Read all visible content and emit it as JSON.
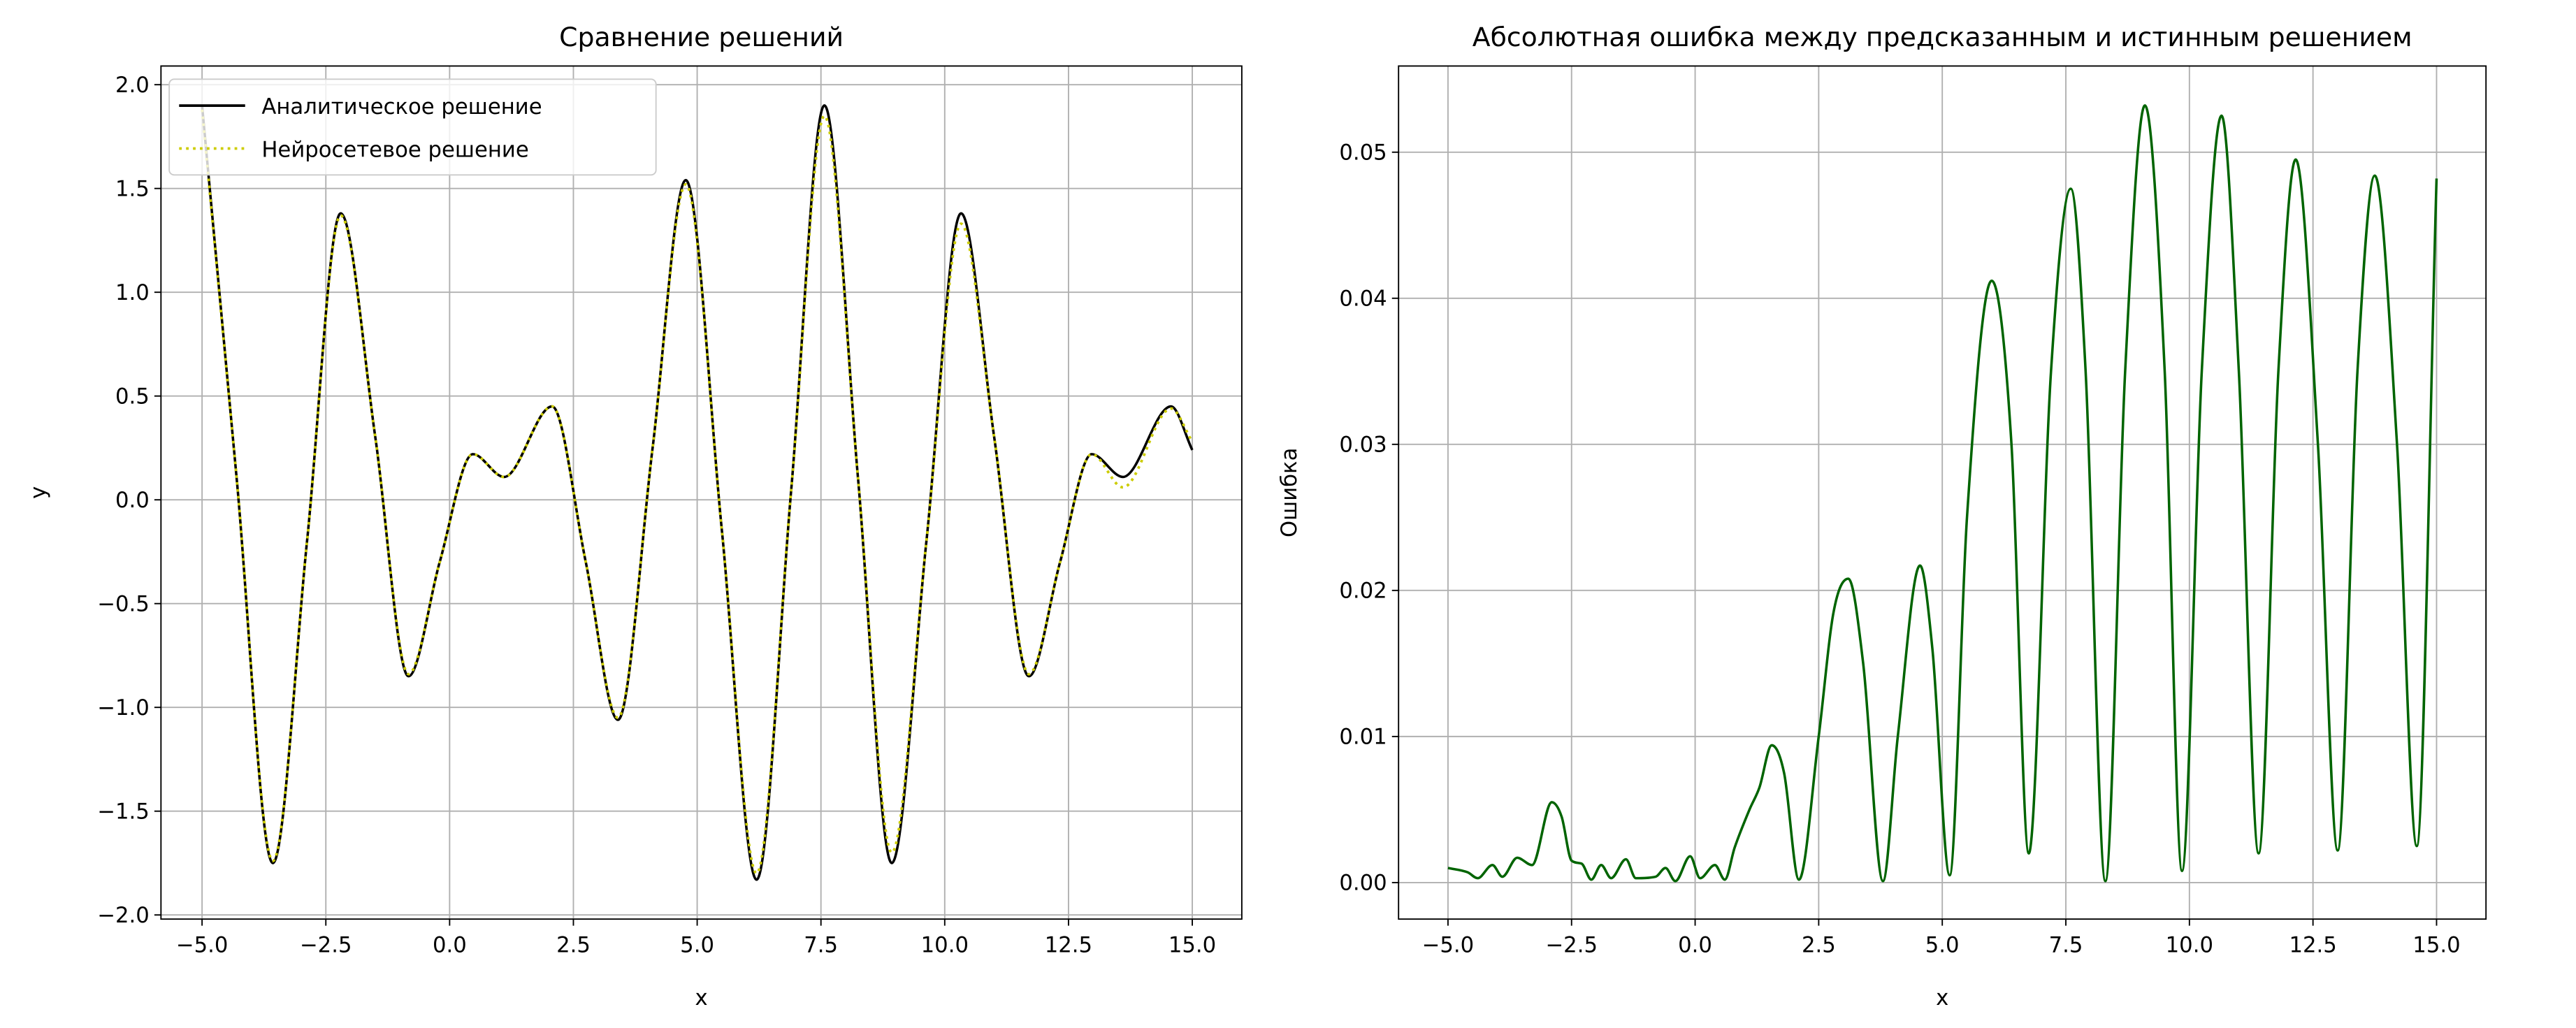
{
  "chart_data": [
    {
      "type": "line",
      "title": "Сравнение решений",
      "xlabel": "x",
      "ylabel": "y",
      "x": [
        -5,
        -4.3,
        -3.57,
        -2.88,
        -2.2,
        -1.5,
        -0.83,
        -0.2,
        0.47,
        1.1,
        2.07,
        2.75,
        3.4,
        4.1,
        4.77,
        5.5,
        6.2,
        6.9,
        7.57,
        8.25,
        8.93,
        9.63,
        10.33,
        11.0,
        11.7,
        12.33,
        12.97,
        13.6,
        14.57,
        15
      ],
      "series": [
        {
          "name": "Аналитическое решение",
          "color": "#000000",
          "linestyle": "solid",
          "values": [
            1.9,
            0.1,
            -1.75,
            -0.2,
            1.38,
            0.3,
            -0.85,
            -0.3,
            0.22,
            0.11,
            0.45,
            -0.3,
            -1.06,
            0.25,
            1.54,
            -0.15,
            -1.83,
            0.05,
            1.9,
            0.1,
            -1.75,
            -0.2,
            1.38,
            0.3,
            -0.85,
            -0.3,
            0.22,
            0.11,
            0.45,
            0.24
          ]
        },
        {
          "name": "Нейросетевое решение",
          "color": "#cccc00",
          "linestyle": "dotted",
          "values": [
            1.88,
            0.1,
            -1.74,
            -0.2,
            1.37,
            0.3,
            -0.84,
            -0.3,
            0.22,
            0.11,
            0.45,
            -0.3,
            -1.05,
            0.25,
            1.52,
            -0.15,
            -1.8,
            0.05,
            1.85,
            0.1,
            -1.7,
            -0.2,
            1.33,
            0.3,
            -0.84,
            -0.3,
            0.22,
            0.06,
            0.44,
            0.28
          ]
        }
      ],
      "xlim": [
        -5.83,
        16.0
      ],
      "ylim": [
        -2.02,
        2.09
      ],
      "xticks": [
        {
          "value": -5,
          "label": "−5.0"
        },
        {
          "value": -2.5,
          "label": "−2.5"
        },
        {
          "value": 0,
          "label": "0.0"
        },
        2.5,
        {
          "value": 5,
          "label": "5.0"
        },
        7.5,
        {
          "value": 10,
          "label": "10.0"
        },
        12.5,
        {
          "value": 15,
          "label": "15.0"
        }
      ],
      "yticks": [
        {
          "value": -2,
          "label": "−2.0"
        },
        {
          "value": -1.5,
          "label": "−1.5"
        },
        {
          "value": -1,
          "label": "−1.0"
        },
        {
          "value": -0.5,
          "label": "−0.5"
        },
        {
          "value": 0,
          "label": "0.0"
        },
        0.5,
        {
          "value": 1,
          "label": "1.0"
        },
        1.5,
        {
          "value": 2,
          "label": "2.0"
        }
      ],
      "grid": true,
      "legend": "upper left"
    },
    {
      "type": "line",
      "title": "Абсолютная ошибка между предсказанным и истинным решением",
      "xlabel": "x",
      "ylabel": "Ошибка",
      "x": [
        -5,
        -4.6,
        -4.4,
        -4.1,
        -3.9,
        -3.6,
        -3.3,
        -2.9,
        -2.7,
        -2.5,
        -2.3,
        -2.1,
        -1.9,
        -1.7,
        -1.4,
        -1.2,
        -0.8,
        -0.6,
        -0.4,
        -0.1,
        0.1,
        0.4,
        0.6,
        0.8,
        1.1,
        1.3,
        1.55,
        1.8,
        2.1,
        2.5,
        2.8,
        3.1,
        3.4,
        3.8,
        4.1,
        4.55,
        4.8,
        5.15,
        5.5,
        6.0,
        6.4,
        6.75,
        7.2,
        7.6,
        7.9,
        8.3,
        8.7,
        9.1,
        9.5,
        9.85,
        10.25,
        10.65,
        11.0,
        11.4,
        11.8,
        12.15,
        12.6,
        13.0,
        13.4,
        13.75,
        14.2,
        14.6,
        15.0
      ],
      "series": [
        {
          "name": "Ошибка",
          "color": "#006400",
          "linestyle": "solid",
          "values": [
            0.001,
            0.0007,
            0.0003,
            0.0012,
            0.0004,
            0.0017,
            0.0012,
            0.0055,
            0.0045,
            0.0015,
            0.0013,
            0.0002,
            0.0012,
            0.0003,
            0.0016,
            0.0003,
            0.0004,
            0.001,
            0.0001,
            0.0018,
            0.0003,
            0.0012,
            0.0002,
            0.0024,
            0.005,
            0.0065,
            0.0094,
            0.0075,
            0.0002,
            0.01,
            0.0185,
            0.0208,
            0.015,
            0.0001,
            0.01,
            0.0217,
            0.016,
            0.0005,
            0.025,
            0.0412,
            0.03,
            0.002,
            0.035,
            0.0475,
            0.035,
            0.0001,
            0.035,
            0.0532,
            0.035,
            0.0008,
            0.035,
            0.0525,
            0.035,
            0.002,
            0.035,
            0.0495,
            0.03,
            0.0022,
            0.035,
            0.0484,
            0.03,
            0.0025,
            0.0482
          ]
        }
      ],
      "xlim": [
        -6.0,
        16.0
      ],
      "ylim": [
        -0.0025,
        0.0559
      ],
      "xticks": [
        {
          "value": -5,
          "label": "−5.0"
        },
        {
          "value": -2.5,
          "label": "−2.5"
        },
        {
          "value": 0,
          "label": "0.0"
        },
        2.5,
        {
          "value": 5,
          "label": "5.0"
        },
        7.5,
        {
          "value": 10,
          "label": "10.0"
        },
        12.5,
        {
          "value": 15,
          "label": "15.0"
        }
      ],
      "yticks": [
        {
          "value": 0,
          "label": "0.00"
        },
        0.01,
        0.02,
        0.03,
        0.04,
        0.05
      ],
      "grid": true
    }
  ]
}
